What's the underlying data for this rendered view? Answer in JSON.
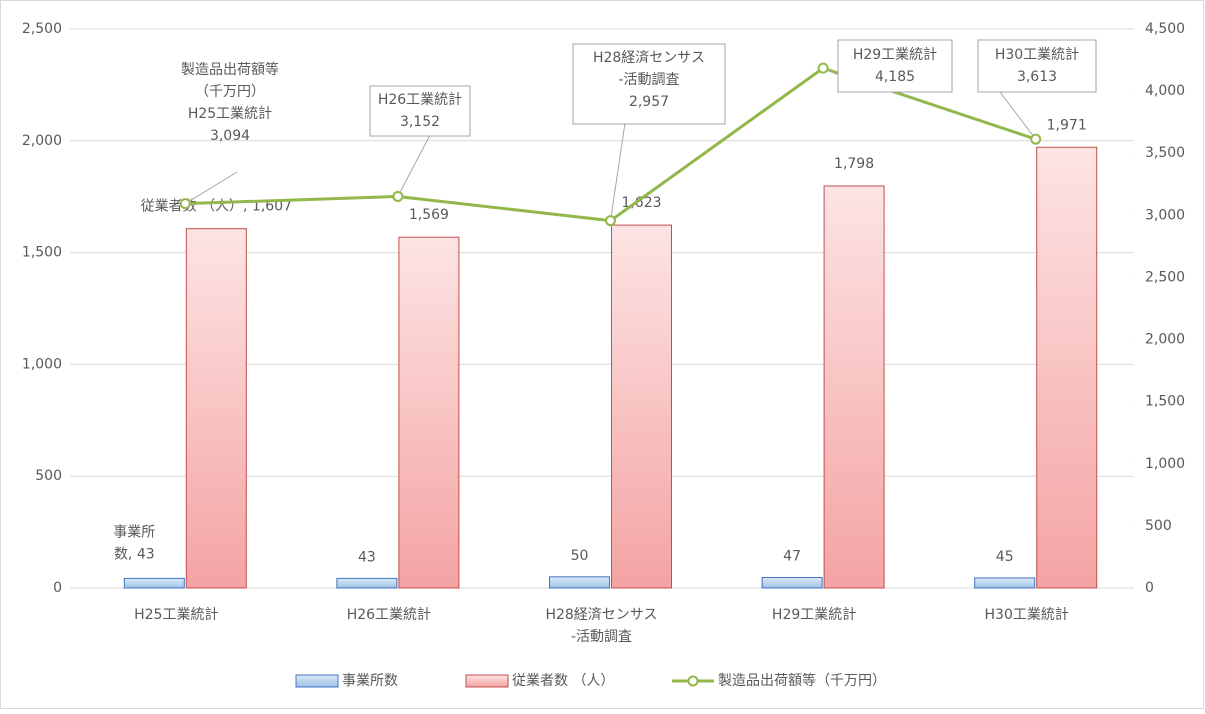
{
  "chart_data": {
    "type": "bar",
    "categories": [
      "H25工業統計",
      "H26工業統計",
      "H28経済センサス\n-活動調査",
      "H29工業統計",
      "H30工業統計"
    ],
    "series": [
      {
        "name": "事業所数",
        "color": "#9dc3e6",
        "type": "bar",
        "values": [
          43,
          43,
          50,
          47,
          45
        ],
        "value_labels": [
          "事業所\n数, 43",
          "43",
          "50",
          "47",
          "45"
        ]
      },
      {
        "name": "従業者数 （人）",
        "color": "#f4a3a3",
        "type": "bar",
        "values": [
          1607,
          1569,
          1623,
          1798,
          1971
        ],
        "value_labels": [
          "従業者数 （人）, 1,607",
          "1,569",
          "1,623",
          "1,798",
          "1,971"
        ]
      },
      {
        "name": "製造品出荷額等（千万円）",
        "color": "#92b74a",
        "type": "line",
        "axis": "y2",
        "values": [
          3094,
          3152,
          2957,
          4185,
          3613
        ],
        "value_labels": [
          "製造品出荷額等\n（千万円）\nH25工業統計\n3,094",
          "H26工業統計\n3,152",
          "H28経済センサス\n-活動調査\n2,957",
          "H29工業統計\n4,185",
          "H30工業統計\n3,613"
        ]
      }
    ],
    "ylim": [
      0,
      2500
    ],
    "yticks": [
      0,
      500,
      {
        "value": 1000,
        "label": "1,000"
      },
      {
        "value": 1500,
        "label": "1,500"
      },
      {
        "value": 2000,
        "label": "2,000"
      },
      {
        "value": 2500,
        "label": "2,500"
      }
    ],
    "y2lim": [
      0,
      4500
    ],
    "y2ticks": [
      0,
      500,
      {
        "value": 1000,
        "label": "1,000"
      },
      {
        "value": 1500,
        "label": "1,500"
      },
      {
        "value": 2000,
        "label": "2,000"
      },
      {
        "value": 2500,
        "label": "2,500"
      },
      {
        "value": 3000,
        "label": "3,000"
      },
      {
        "value": 3500,
        "label": "3,500"
      },
      {
        "value": 4000,
        "label": "4,000"
      },
      {
        "value": 4500,
        "label": "4,500"
      }
    ],
    "grid": true,
    "legend": "bottom"
  }
}
